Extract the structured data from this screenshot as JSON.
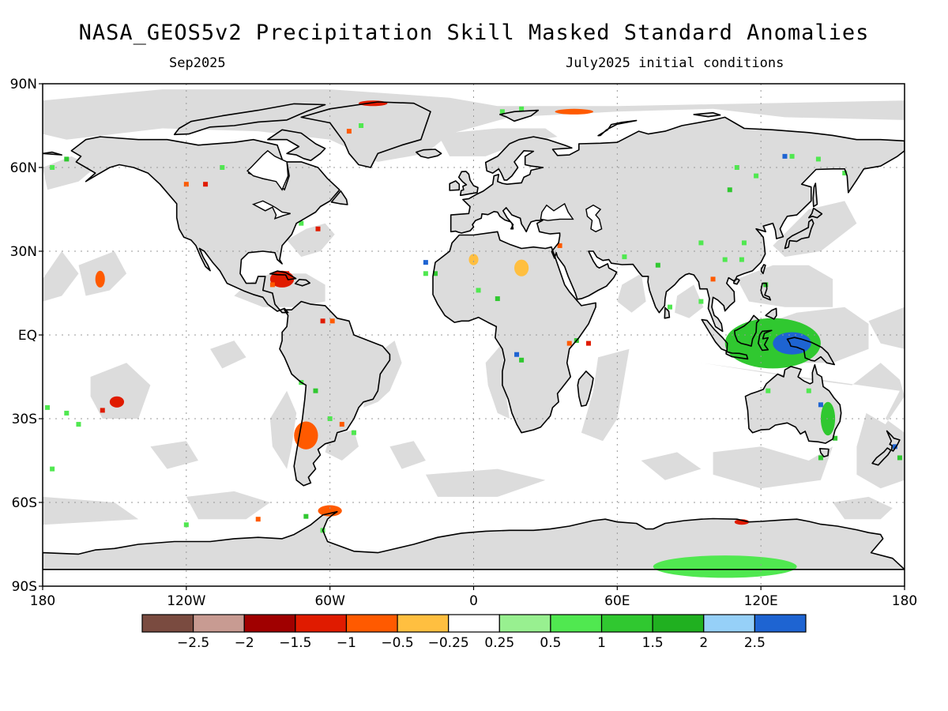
{
  "title": "NASA_GEOS5v2 Precipitation Skill Masked Standard Anomalies",
  "subtitle_left": "Sep2025",
  "subtitle_right": "July2025 initial conditions",
  "lat_labels": [
    "90N",
    "60N",
    "30N",
    "EQ",
    "30S",
    "60S",
    "90S"
  ],
  "lon_labels": [
    "180",
    "120W",
    "60W",
    "0",
    "60E",
    "120E",
    "180"
  ],
  "colorbar": {
    "colors": [
      "#7a4b40",
      "#c89b92",
      "#a00000",
      "#e01b00",
      "#ff5a00",
      "#ffbf40",
      "#ffffff",
      "#98f090",
      "#50e850",
      "#30c830",
      "#20b020",
      "#96d0f8",
      "#1e64d2"
    ],
    "labels": [
      "-2.5",
      "-2",
      "-1.5",
      "-1",
      "-0.5",
      "-0.25",
      "0.25",
      "0.5",
      "1",
      "1.5",
      "2",
      "2.5"
    ]
  },
  "colors": {
    "land_mask": "#dcdcdc",
    "coast": "#000000",
    "grid": "#999999"
  },
  "anomaly_regions": [
    {
      "name": "maritime-continent-wet",
      "lon": 125,
      "lat": -3,
      "rlon": 20,
      "rlat": 9,
      "color": "#30c830"
    },
    {
      "name": "new-guinea-strong-wet",
      "lon": 133,
      "lat": -3,
      "rlon": 8,
      "rlat": 4,
      "color": "#1e64d2"
    },
    {
      "name": "antarctica-wet",
      "lon": 105,
      "lat": -83,
      "rlon": 30,
      "rlat": 4,
      "color": "#50e850"
    },
    {
      "name": "chile-dry",
      "lon": -70,
      "lat": -36,
      "rlon": 5,
      "rlat": 5,
      "color": "#ff5a00"
    },
    {
      "name": "caribbean-dry",
      "lon": -80,
      "lat": 20,
      "rlon": 5,
      "rlat": 3,
      "color": "#e01b00"
    },
    {
      "name": "pacific-south-dry",
      "lon": -149,
      "lat": -24,
      "rlon": 3,
      "rlat": 2,
      "color": "#e01b00"
    },
    {
      "name": "hawaii-dry",
      "lon": -156,
      "lat": 20,
      "rlon": 2,
      "rlat": 3,
      "color": "#ff5a00"
    },
    {
      "name": "greenland-north-dry",
      "lon": -42,
      "lat": 83,
      "rlon": 6,
      "rlat": 1,
      "color": "#e01b00"
    },
    {
      "name": "svalbard-dry",
      "lon": 42,
      "lat": 80,
      "rlon": 8,
      "rlat": 1,
      "color": "#ff5a00"
    },
    {
      "name": "sahara-dry",
      "lon": 20,
      "lat": 24,
      "rlon": 3,
      "rlat": 3,
      "color": "#ffbf40"
    },
    {
      "name": "nw-africa-dry",
      "lon": 0,
      "lat": 27,
      "rlon": 2,
      "rlat": 2,
      "color": "#ffbf40"
    },
    {
      "name": "east-australia-wet",
      "lon": 148,
      "lat": -30,
      "rlon": 3,
      "rlat": 6,
      "color": "#30c830"
    },
    {
      "name": "peninsula-dry",
      "lon": -60,
      "lat": -63,
      "rlon": 5,
      "rlat": 2,
      "color": "#ff5a00"
    },
    {
      "name": "antarctica-east-dry",
      "lon": 112,
      "lat": -67,
      "rlon": 3,
      "rlat": 1,
      "color": "#e01b00"
    }
  ]
}
